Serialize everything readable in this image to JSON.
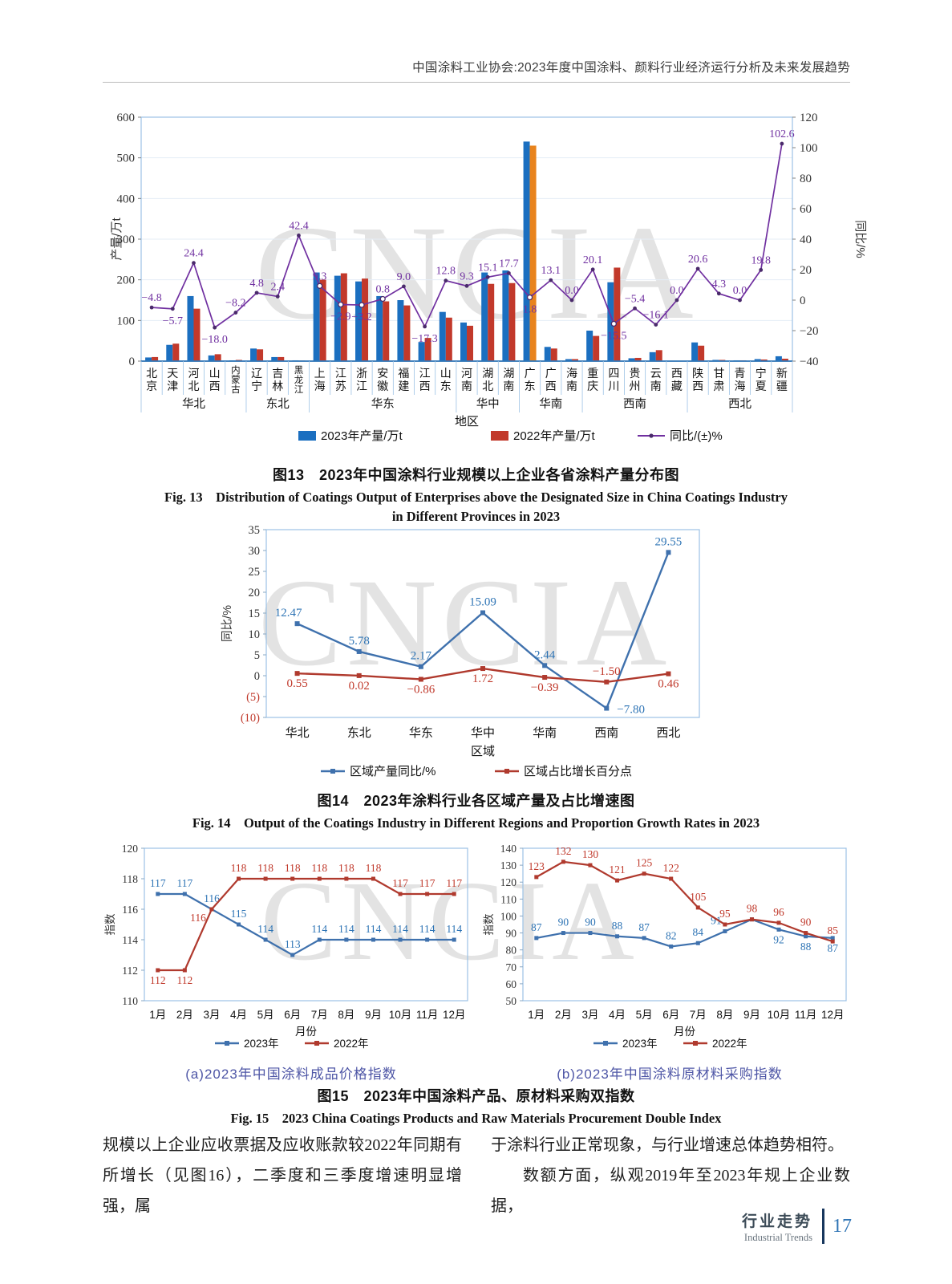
{
  "page": {
    "header_title": "中国涂料工业协会:2023年度中国涂料、颜料行业经济运行分析及未来发展趋势",
    "watermark_text": "CNCIA",
    "body_text": {
      "left_column": "规模以上企业应收票据及应收账款较2022年同期有所增长（见图16），二季度和三季度增速明显增强，属",
      "right_column_line1": "于涂料行业正常现象，与行业增速总体趋势相符。",
      "right_column_line2": "数额方面，纵观2019年至2023年规上企业数据，"
    },
    "footer": {
      "section_zh": "行业走势",
      "section_en": "Industrial Trends",
      "page_number": "17"
    }
  },
  "captions": {
    "fig13_zh": "图13　2023年中国涂料行业规模以上企业各省涂料产量分布图",
    "fig13_en1": "Fig. 13　Distribution of Coatings Output of Enterprises above the Designated Size in China Coatings Industry",
    "fig13_en2": "in Different Provinces in 2023",
    "fig14_zh": "图14　2023年涂料行业各区域产量及占比增速图",
    "fig14_en": "Fig. 14　Output of the Coatings Industry in Different Regions and Proportion Growth Rates in 2023",
    "fig15_zh": "图15　2023年中国涂料产品、原材料采购双指数",
    "fig15_en": "Fig. 15　2023 China Coatings Products and Raw Materials Procurement Double Index",
    "fig15a_sub": "(a)2023年中国涂料成品价格指数",
    "fig15b_sub": "(b)2023年中国涂料原材料采购指数"
  },
  "chart_data": [
    {
      "id": "fig13",
      "type": "bar",
      "categories": [
        "北京",
        "天津",
        "河北",
        "山西",
        "内蒙古",
        "辽宁",
        "吉林",
        "黑龙江",
        "上海",
        "江苏",
        "浙江",
        "安徽",
        "福建",
        "江西",
        "山东",
        "河南",
        "湖北",
        "湖南",
        "广东",
        "广西",
        "海南",
        "重庆",
        "四川",
        "贵州",
        "云南",
        "西藏",
        "陕西",
        "甘肃",
        "青海",
        "宁夏",
        "新疆"
      ],
      "regions": [
        {
          "label": "华北",
          "count": 5
        },
        {
          "label": "东北",
          "count": 3
        },
        {
          "label": "华东",
          "count": 7
        },
        {
          "label": "华中",
          "count": 3
        },
        {
          "label": "华南",
          "count": 3
        },
        {
          "label": "西南",
          "count": 5
        },
        {
          "label": "西北",
          "count": 5
        }
      ],
      "series": [
        {
          "name": "2023年产量/万t",
          "type": "bar",
          "color": "#1b6fc0",
          "values": [
            9,
            40,
            160,
            14,
            2,
            31,
            10,
            2,
            218,
            210,
            196,
            160,
            150,
            47,
            121,
            95,
            218,
            223,
            540,
            35,
            5,
            75,
            194,
            7,
            22,
            1,
            46,
            3,
            2,
            5,
            12
          ]
        },
        {
          "name": "2022年产量/万t",
          "type": "bar",
          "color": "#c2392b",
          "values": [
            10,
            43,
            129,
            17,
            3,
            29,
            10,
            1.5,
            200,
            216,
            203,
            147,
            137,
            57,
            107,
            87,
            190,
            192,
            530,
            31,
            5,
            62,
            230,
            8,
            27,
            1,
            38,
            3,
            2,
            4,
            6
          ]
        },
        {
          "name": "同比/(±)%",
          "type": "line",
          "axis": "right",
          "color": "#7030a0",
          "values": [
            -4.8,
            -5.7,
            24.4,
            -18.0,
            -8.2,
            4.8,
            2.4,
            42.4,
            9.3,
            -2.9,
            -3.2,
            0.8,
            9.0,
            -17.3,
            12.8,
            9.3,
            15.1,
            17.7,
            1.8,
            13.1,
            0.0,
            20.1,
            -15.5,
            -5.4,
            -16.1,
            0.0,
            20.6,
            4.3,
            0.0,
            19.8,
            102.6
          ]
        }
      ],
      "highlight": {
        "series": 1,
        "index": 18,
        "color": "#e8831d"
      },
      "axes": {
        "left": {
          "label": "产量/万t",
          "min": 0,
          "max": 600,
          "step": 100
        },
        "right": {
          "label": "同比/%",
          "min": -40,
          "max": 120,
          "step": 20
        },
        "x": {
          "label": "地区"
        }
      },
      "label_below_indices": [
        1,
        3,
        9,
        10,
        13,
        18,
        22
      ],
      "ring_marker_indices": [
        8,
        9,
        10,
        11,
        18,
        22
      ],
      "grid": true,
      "legend_position": "bottom"
    },
    {
      "id": "fig14",
      "type": "line",
      "categories": [
        "华北",
        "东北",
        "华东",
        "华中",
        "华南",
        "西南",
        "西北"
      ],
      "series": [
        {
          "name": "区域产量同比/%",
          "color": "#3f71ad",
          "label_color": "#2e74b5",
          "values": [
            12.47,
            5.78,
            2.17,
            15.09,
            2.44,
            -7.8,
            29.55
          ],
          "label_pos": [
            "al",
            "a",
            "a",
            "a",
            "a",
            "r",
            "a"
          ]
        },
        {
          "name": "区域占比增长百分点",
          "color": "#b03a2e",
          "label_color": "#c0392b",
          "values": [
            0.55,
            0.02,
            -0.86,
            1.72,
            -0.39,
            -1.5,
            0.46
          ],
          "label_pos": [
            "b",
            "b",
            "b",
            "b",
            "b",
            "a",
            "b"
          ]
        }
      ],
      "axes": {
        "left": {
          "label": "同比/%",
          "min": -10,
          "max": 35,
          "step": 5,
          "negative_style": "red-parentheses"
        },
        "x": {
          "label": "区域"
        }
      },
      "grid": false,
      "legend_position": "bottom"
    },
    {
      "id": "fig15a",
      "type": "line",
      "categories": [
        "1月",
        "2月",
        "3月",
        "4月",
        "5月",
        "6月",
        "7月",
        "8月",
        "9月",
        "10月",
        "11月",
        "12月"
      ],
      "series": [
        {
          "name": "2023年",
          "color": "#3f71ad",
          "label_color": "#2e74b5",
          "values": [
            117,
            117,
            116,
            115,
            114,
            113,
            114,
            114,
            114,
            114,
            114,
            114
          ],
          "label_pos": [
            "a",
            "a",
            "a",
            "a",
            "a",
            "a",
            "a",
            "a",
            "a",
            "a",
            "a",
            "a"
          ]
        },
        {
          "name": "2022年",
          "color": "#b03a2e",
          "label_color": "#c0392b",
          "values": [
            112,
            112,
            116,
            118,
            118,
            118,
            118,
            118,
            118,
            117,
            117,
            117
          ],
          "label_pos": [
            "b",
            "b",
            "bl",
            "a",
            "a",
            "a",
            "a",
            "a",
            "a",
            "a",
            "a",
            "a"
          ]
        }
      ],
      "axes": {
        "left": {
          "label": "指数",
          "min": 110,
          "max": 120,
          "step": 2
        },
        "x": {
          "label": "月份"
        }
      },
      "grid": false,
      "legend_position": "bottom"
    },
    {
      "id": "fig15b",
      "type": "line",
      "categories": [
        "1月",
        "2月",
        "3月",
        "4月",
        "5月",
        "6月",
        "7月",
        "8月",
        "9月",
        "10月",
        "11月",
        "12月"
      ],
      "series": [
        {
          "name": "2023年",
          "color": "#3f71ad",
          "label_color": "#2e74b5",
          "values": [
            87,
            90,
            90,
            88,
            87,
            82,
            84,
            91,
            98,
            92,
            88,
            87
          ],
          "label_pos": [
            "a",
            "a",
            "a",
            "a",
            "a",
            "a",
            "a",
            "al",
            "x",
            "b",
            "b",
            "b"
          ]
        },
        {
          "name": "2022年",
          "color": "#b03a2e",
          "label_color": "#c0392b",
          "values": [
            123,
            132,
            130,
            121,
            125,
            122,
            105,
            95,
            98,
            96,
            90,
            85
          ],
          "label_pos": [
            "a",
            "a",
            "a",
            "a",
            "a",
            "a",
            "a",
            "a",
            "a",
            "a",
            "a",
            "a"
          ]
        }
      ],
      "axes": {
        "left": {
          "label": "指数",
          "min": 50,
          "max": 140,
          "step": 10
        },
        "x": {
          "label": "月份"
        }
      },
      "grid": false,
      "legend_position": "bottom"
    }
  ]
}
